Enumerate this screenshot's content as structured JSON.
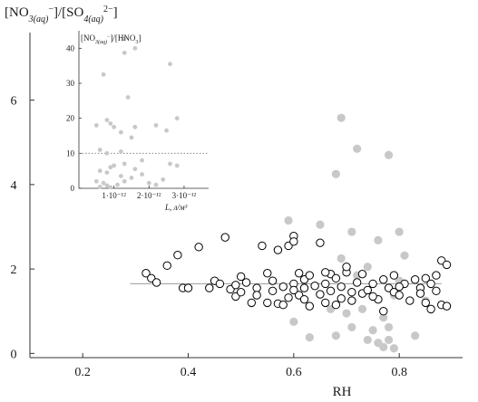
{
  "chart_data": [
    {
      "type": "scatter",
      "title": "",
      "ylabel": "[NO3(aq)-]/[SO4(aq)2-]",
      "xlabel": "RH",
      "xlim": [
        0.1,
        0.92
      ],
      "ylim": [
        -0.1,
        7.6
      ],
      "x_ticks": [
        0.2,
        0.4,
        0.6,
        0.8
      ],
      "x_tick_labels": [
        "0.2",
        "0.4",
        "0.6",
        "0.8"
      ],
      "y_ticks": [
        0,
        2,
        4,
        6
      ],
      "y_tick_labels": [
        "0",
        "2",
        "4",
        "6"
      ],
      "grid": false,
      "reference_line": {
        "y": 1.65,
        "x_from": 0.29,
        "x_to": 0.88,
        "color": "#9a9a9a"
      },
      "series": [
        {
          "marker": "open-circle",
          "color": "#000000",
          "points": [
            [
              0.32,
              1.9
            ],
            [
              0.33,
              1.78
            ],
            [
              0.34,
              1.68
            ],
            [
              0.36,
              2.08
            ],
            [
              0.38,
              2.33
            ],
            [
              0.39,
              1.55
            ],
            [
              0.4,
              1.55
            ],
            [
              0.42,
              2.52
            ],
            [
              0.44,
              1.55
            ],
            [
              0.45,
              1.72
            ],
            [
              0.46,
              1.65
            ],
            [
              0.47,
              2.75
            ],
            [
              0.48,
              1.52
            ],
            [
              0.49,
              1.62
            ],
            [
              0.49,
              1.35
            ],
            [
              0.5,
              1.82
            ],
            [
              0.5,
              1.45
            ],
            [
              0.51,
              1.68
            ],
            [
              0.52,
              1.2
            ],
            [
              0.53,
              1.55
            ],
            [
              0.54,
              2.55
            ],
            [
              0.55,
              1.9
            ],
            [
              0.55,
              1.2
            ],
            [
              0.56,
              1.72
            ],
            [
              0.56,
              1.48
            ],
            [
              0.57,
              2.45
            ],
            [
              0.57,
              1.18
            ],
            [
              0.58,
              1.58
            ],
            [
              0.58,
              1.15
            ],
            [
              0.59,
              2.55
            ],
            [
              0.59,
              1.32
            ],
            [
              0.6,
              1.65
            ],
            [
              0.6,
              2.78
            ],
            [
              0.6,
              2.65
            ],
            [
              0.61,
              1.9
            ],
            [
              0.61,
              1.38
            ],
            [
              0.62,
              1.75
            ],
            [
              0.62,
              1.55
            ],
            [
              0.62,
              1.28
            ],
            [
              0.63,
              1.85
            ],
            [
              0.63,
              1.12
            ],
            [
              0.64,
              1.6
            ],
            [
              0.65,
              1.4
            ],
            [
              0.65,
              2.62
            ],
            [
              0.66,
              1.65
            ],
            [
              0.66,
              1.2
            ],
            [
              0.67,
              1.88
            ],
            [
              0.67,
              1.48
            ],
            [
              0.68,
              1.78
            ],
            [
              0.68,
              1.15
            ],
            [
              0.69,
              1.58
            ],
            [
              0.69,
              1.3
            ],
            [
              0.7,
              1.92
            ],
            [
              0.7,
              2.05
            ],
            [
              0.71,
              1.45
            ],
            [
              0.71,
              1.25
            ],
            [
              0.72,
              1.68
            ],
            [
              0.73,
              1.88
            ],
            [
              0.73,
              1.42
            ],
            [
              0.74,
              1.5
            ],
            [
              0.75,
              1.65
            ],
            [
              0.76,
              1.28
            ],
            [
              0.77,
              1.75
            ],
            [
              0.77,
              1.0
            ],
            [
              0.78,
              1.55
            ],
            [
              0.79,
              1.85
            ],
            [
              0.79,
              1.45
            ],
            [
              0.8,
              1.38
            ],
            [
              0.81,
              1.65
            ],
            [
              0.82,
              1.25
            ],
            [
              0.83,
              1.75
            ],
            [
              0.84,
              1.55
            ],
            [
              0.85,
              1.78
            ],
            [
              0.85,
              1.2
            ],
            [
              0.86,
              1.65
            ],
            [
              0.87,
              1.85
            ],
            [
              0.87,
              1.48
            ],
            [
              0.88,
              1.15
            ],
            [
              0.88,
              2.2
            ],
            [
              0.89,
              2.1
            ],
            [
              0.89,
              1.12
            ],
            [
              0.86,
              1.05
            ],
            [
              0.84,
              1.42
            ],
            [
              0.8,
              1.58
            ],
            [
              0.75,
              1.35
            ],
            [
              0.66,
              1.92
            ],
            [
              0.6,
              1.5
            ],
            [
              0.53,
              1.38
            ]
          ]
        },
        {
          "marker": "filled-circle",
          "color": "#c8c8c8",
          "points": [
            [
              0.69,
              5.58
            ],
            [
              0.72,
              4.85
            ],
            [
              0.78,
              4.7
            ],
            [
              0.68,
              4.25
            ],
            [
              0.59,
              3.15
            ],
            [
              0.65,
              3.05
            ],
            [
              0.71,
              2.88
            ],
            [
              0.76,
              2.68
            ],
            [
              0.8,
              2.88
            ],
            [
              0.69,
              2.25
            ],
            [
              0.74,
              2.05
            ],
            [
              0.81,
              2.32
            ],
            [
              0.72,
              1.85
            ],
            [
              0.6,
              0.75
            ],
            [
              0.63,
              0.38
            ],
            [
              0.67,
              1.05
            ],
            [
              0.7,
              0.95
            ],
            [
              0.73,
              1.05
            ],
            [
              0.75,
              0.55
            ],
            [
              0.76,
              0.25
            ],
            [
              0.77,
              0.15
            ],
            [
              0.78,
              0.32
            ],
            [
              0.79,
              0.12
            ],
            [
              0.8,
              1.72
            ],
            [
              0.83,
              0.42
            ],
            [
              0.78,
              0.62
            ],
            [
              0.77,
              0.85
            ],
            [
              0.79,
              1.38
            ],
            [
              0.71,
              0.62
            ],
            [
              0.68,
              0.42
            ],
            [
              0.74,
              0.32
            ],
            [
              0.85,
              1.25
            ]
          ]
        }
      ]
    },
    {
      "type": "scatter",
      "title": "[NO3(aq)-]/[HNO3]",
      "xlabel": "L, л/м³",
      "ylabel": "",
      "xlim": [
        0,
        3.7e-12
      ],
      "ylim": [
        0,
        45
      ],
      "x_tick_labels": [
        "1·10⁻¹²",
        "2·10⁻¹²",
        "3·10⁻¹²"
      ],
      "y_tick_labels": [
        "0",
        "10",
        "20",
        "30",
        "40"
      ],
      "reference_line": {
        "y": 10,
        "style": "dotted",
        "color": "#777777"
      },
      "series": [
        {
          "marker": "filled-circle",
          "color": "#c8c8c8",
          "points": [
            [
              1.3e-12,
              42.8
            ],
            [
              1.6e-12,
              40
            ],
            [
              1.3e-12,
              38.7
            ],
            [
              2.6e-12,
              35.5
            ],
            [
              7e-13,
              32.5
            ],
            [
              1.4e-12,
              26
            ],
            [
              2.8e-12,
              20
            ],
            [
              5e-13,
              18
            ],
            [
              8e-13,
              19.5
            ],
            [
              9e-13,
              18.5
            ],
            [
              1e-12,
              17.5
            ],
            [
              1.6e-12,
              17.5
            ],
            [
              2.2e-12,
              18
            ],
            [
              2.5e-12,
              16.5
            ],
            [
              1.2e-12,
              16
            ],
            [
              1.5e-12,
              14.5
            ],
            [
              6e-13,
              11
            ],
            [
              8e-13,
              10
            ],
            [
              1.2e-12,
              10.5
            ],
            [
              1.8e-12,
              8
            ],
            [
              2.6e-12,
              7
            ],
            [
              2.8e-12,
              6.5
            ],
            [
              9e-13,
              6
            ],
            [
              1e-12,
              6.5
            ],
            [
              1.3e-12,
              7
            ],
            [
              1.6e-12,
              5.5
            ],
            [
              6e-13,
              5
            ],
            [
              8e-13,
              4.5
            ],
            [
              1.2e-12,
              3.5
            ],
            [
              1.5e-12,
              3
            ],
            [
              1.8e-12,
              4
            ],
            [
              5e-13,
              2
            ],
            [
              7e-13,
              1.5
            ],
            [
              8e-13,
              0.8
            ],
            [
              1.1e-12,
              1
            ],
            [
              1.3e-12,
              2
            ],
            [
              2e-12,
              1.5
            ],
            [
              2.2e-12,
              1
            ],
            [
              6e-13,
              0.4
            ],
            [
              9e-13,
              0.3
            ],
            [
              2.4e-12,
              2.5
            ]
          ]
        }
      ]
    }
  ]
}
